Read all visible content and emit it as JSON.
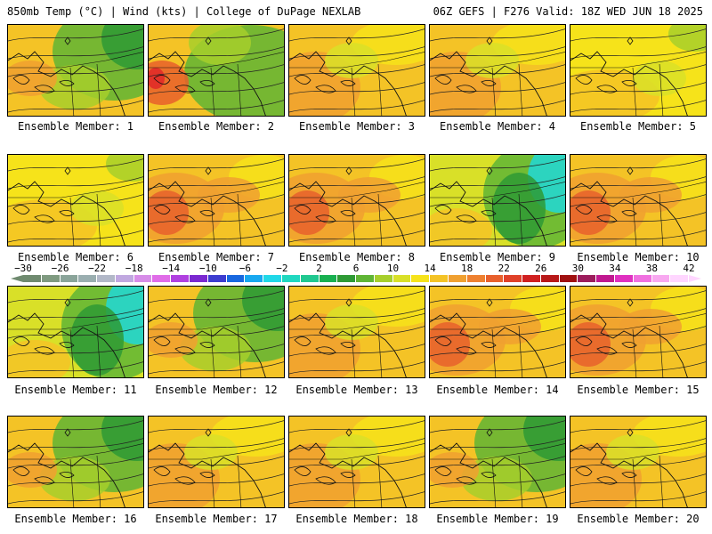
{
  "header": {
    "left_title": "850mb Temp (°C) | Wind (kts) | College of DuPage NEXLAB",
    "right_title": "06Z GEFS | F276 Valid: 18Z WED JUN 18 2025"
  },
  "colors": {
    "background": "#ffffff",
    "dark_green": "#2e9a35",
    "green": "#5fb535",
    "light_green": "#a7cf2c",
    "yellow_green": "#d9e028",
    "yellow": "#f6e31a",
    "gold": "#f4c326",
    "orange": "#f0a030",
    "red_orange": "#e8602c",
    "red": "#e02828",
    "cyan": "#20d8d8"
  },
  "scale": {
    "labels": [
      "−30",
      "−26",
      "−22",
      "−18",
      "−14",
      "−10",
      "−6",
      "−2",
      "2",
      "6",
      "10",
      "14",
      "18",
      "22",
      "26",
      "30",
      "34",
      "38",
      "42"
    ],
    "colors": [
      "#6f8a6f",
      "#7f9a80",
      "#8aa49a",
      "#9aaeb0",
      "#b2b8c8",
      "#c0a8e0",
      "#d78de8",
      "#e06ce8",
      "#b040e0",
      "#7a28d0",
      "#3c3cd0",
      "#1868e0",
      "#18a8f0",
      "#20d8e8",
      "#20d8c0",
      "#20c890",
      "#18b050",
      "#2e9a35",
      "#5fb535",
      "#a7cf2c",
      "#d9e028",
      "#f6e31a",
      "#f4c326",
      "#f0a030",
      "#ee8030",
      "#e8602c",
      "#e04028",
      "#d02020",
      "#b81818",
      "#a01010",
      "#9c1c5c",
      "#c01890",
      "#e030c0",
      "#f070e0",
      "#f8a8f0",
      "#ffd6ff"
    ]
  },
  "members": [
    {
      "label": "Ensemble Member: 1",
      "theme": "g"
    },
    {
      "label": "Ensemble Member: 2",
      "theme": "rg"
    },
    {
      "label": "Ensemble Member: 3",
      "theme": "o"
    },
    {
      "label": "Ensemble Member: 4",
      "theme": "o"
    },
    {
      "label": "Ensemble Member: 5",
      "theme": "y"
    },
    {
      "label": "Ensemble Member: 6",
      "theme": "y"
    },
    {
      "label": "Ensemble Member: 7",
      "theme": "r"
    },
    {
      "label": "Ensemble Member: 8",
      "theme": "r"
    },
    {
      "label": "Ensemble Member: 9",
      "theme": "c"
    },
    {
      "label": "Ensemble Member: 10",
      "theme": "r"
    },
    {
      "label": "Ensemble Member: 11",
      "theme": "c"
    },
    {
      "label": "Ensemble Member: 12",
      "theme": "g"
    },
    {
      "label": "Ensemble Member: 13",
      "theme": "o"
    },
    {
      "label": "Ensemble Member: 14",
      "theme": "r"
    },
    {
      "label": "Ensemble Member: 15",
      "theme": "r"
    },
    {
      "label": "Ensemble Member: 16",
      "theme": "g"
    },
    {
      "label": "Ensemble Member: 17",
      "theme": "o"
    },
    {
      "label": "Ensemble Member: 18",
      "theme": "o"
    },
    {
      "label": "Ensemble Member: 19",
      "theme": "g"
    },
    {
      "label": "Ensemble Member: 20",
      "theme": "o"
    }
  ]
}
